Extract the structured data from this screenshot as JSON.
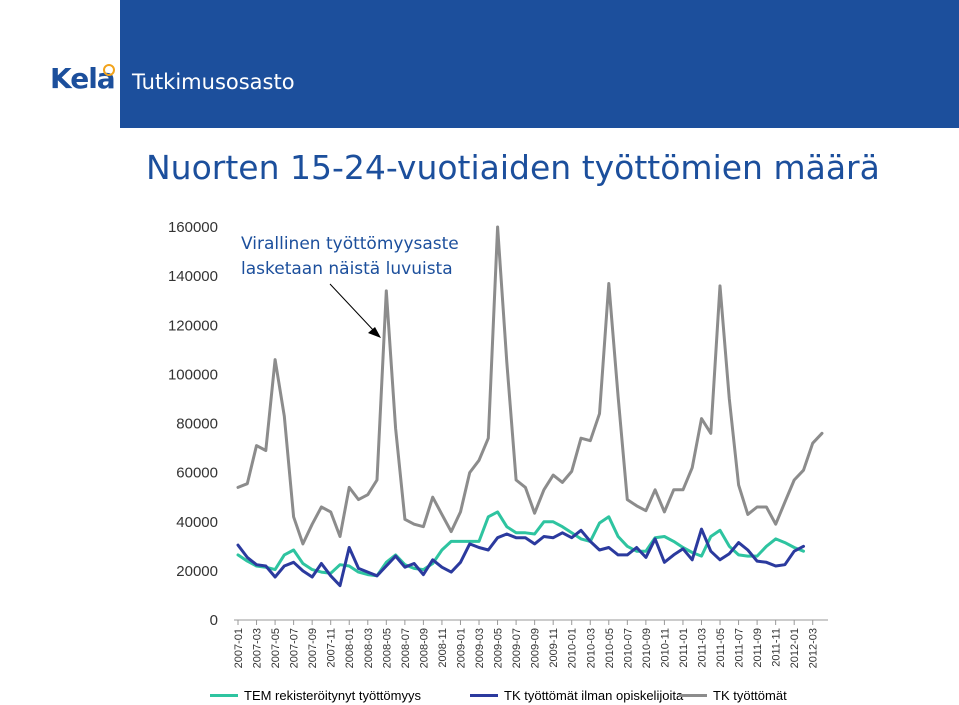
{
  "header": {
    "logo_text": "Kela",
    "department": "Tutkimusosasto",
    "colors": {
      "band": "#1c4f9c",
      "logo_accent": "#f2a31b"
    }
  },
  "chart_data": {
    "type": "line",
    "title": "Nuorten 15-24-vuotiaiden työttömien määrä",
    "annotation": "Virallinen työttömyysaste lasketaan näistä luvuista",
    "annotation_lines": [
      "Virallinen työttömyysaste",
      "lasketaan näistä luvuista"
    ],
    "ylim": [
      0,
      160000
    ],
    "yticks": [
      "0",
      "20000",
      "40000",
      "60000",
      "80000",
      "100000",
      "120000",
      "140000",
      "160000"
    ],
    "grid": false,
    "legend_position": "bottom",
    "x_tick_labels": [
      "2007-01",
      "2007-03",
      "2007-05",
      "2007-07",
      "2007-09",
      "2007-11",
      "2008-01",
      "2008-03",
      "2008-05",
      "2008-07",
      "2008-09",
      "2008-11",
      "2009-01",
      "2009-03",
      "2009-05",
      "2009-07",
      "2009-09",
      "2009-11",
      "2010-01",
      "2010-03",
      "2010-05",
      "2010-07",
      "2010-09",
      "2010-11",
      "2011-01",
      "2011-03",
      "2011-05",
      "2011-07",
      "2011-09",
      "2011-11",
      "2012-01",
      "2012-03"
    ],
    "x_start": "2007-01",
    "series": [
      {
        "name": "TEM rekisteröitynyt työttömyys",
        "color": "#2ec4a0",
        "values": [
          26500,
          24000,
          22000,
          21500,
          20500,
          26500,
          28500,
          23000,
          20500,
          19500,
          19000,
          22500,
          22000,
          19500,
          18500,
          18000,
          23500,
          26500,
          22500,
          21000,
          20500,
          23000,
          28500,
          32000,
          32000,
          32000,
          32000,
          42000,
          44000,
          38000,
          35500,
          35500,
          35000,
          40000,
          40000,
          38000,
          35500,
          33000,
          32000,
          39500,
          42000,
          34000,
          30000,
          28000,
          28000,
          33500,
          34000,
          32000,
          29500,
          27500,
          26000,
          34000,
          36500,
          30000,
          26500,
          26000,
          26000,
          30000,
          33000,
          31500,
          29500,
          28000
        ]
      },
      {
        "name": "TK työttömät ilman opiskelijoita",
        "color": "#2b3a9e",
        "values": [
          30500,
          25500,
          22500,
          22000,
          17500,
          22000,
          23500,
          20000,
          17500,
          23000,
          18000,
          14000,
          29500,
          21000,
          19500,
          18000,
          22000,
          26000,
          21500,
          23000,
          18500,
          24500,
          21500,
          19500,
          23500,
          31000,
          29500,
          28500,
          33500,
          35000,
          33500,
          33500,
          31000,
          34000,
          33500,
          35500,
          33500,
          36500,
          32000,
          28500,
          29500,
          26500,
          26500,
          29500,
          25500,
          33000,
          23500,
          26500,
          29000,
          24500,
          37000,
          28000,
          24500,
          27000,
          31500,
          28500,
          24000,
          23500,
          22000,
          22500,
          28000,
          30000
        ]
      },
      {
        "name": "TK työttömät",
        "color": "#8c8c8c",
        "values": [
          54000,
          55500,
          71000,
          69000,
          106000,
          83000,
          42000,
          31000,
          39000,
          46000,
          44000,
          34000,
          54000,
          49000,
          51000,
          57000,
          134000,
          78000,
          41000,
          39000,
          38000,
          50000,
          43000,
          36000,
          44000,
          60000,
          65000,
          74000,
          160000,
          105000,
          57000,
          54000,
          43500,
          53000,
          59000,
          56000,
          60500,
          74000,
          73000,
          84000,
          137000,
          91000,
          49000,
          46500,
          44500,
          53000,
          44000,
          53000,
          53000,
          62000,
          82000,
          76000,
          136000,
          90000,
          55000,
          43000,
          46000,
          46000,
          39000,
          48000,
          57000,
          61000,
          72000,
          76000
        ]
      }
    ]
  }
}
